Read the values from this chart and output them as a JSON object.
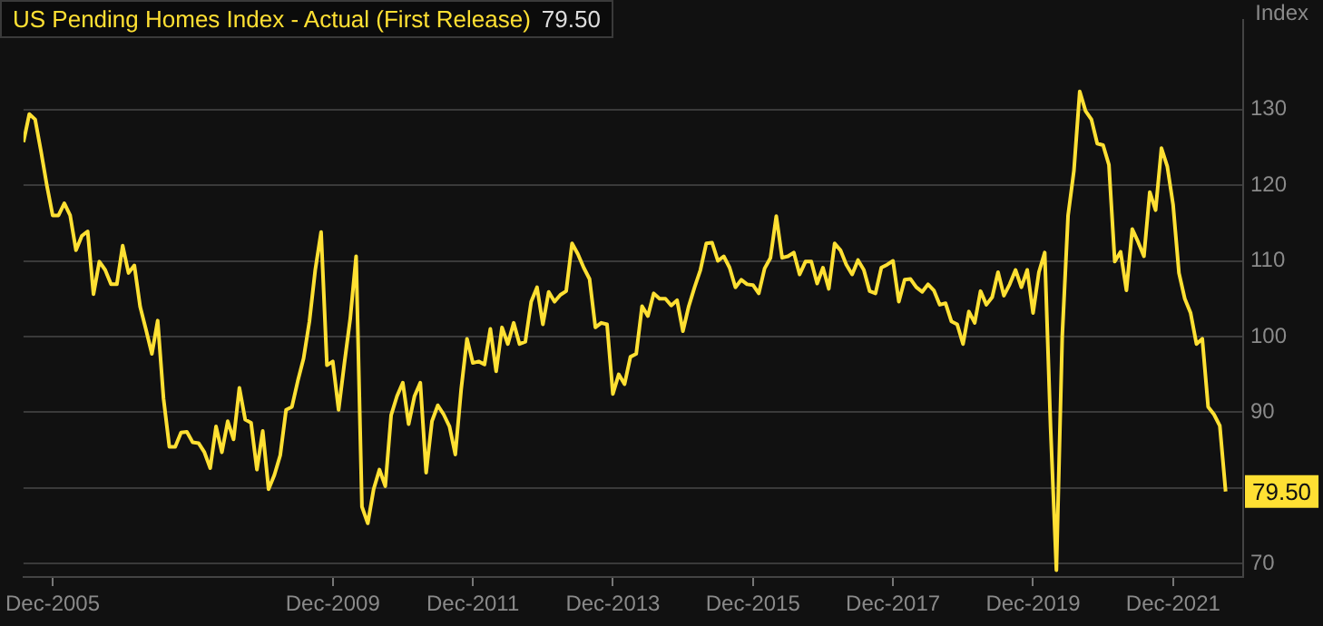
{
  "chart_data": {
    "type": "line",
    "ylabel": "Index",
    "legend": "top left",
    "grid": "y",
    "xlim": [
      "2005-07",
      "2022-12"
    ],
    "ylim": [
      68.2,
      141.8
    ],
    "xticks": [
      {
        "value": "2005-12",
        "label": "Dec-2005"
      },
      {
        "value": "2009-12",
        "label": "Dec-2009"
      },
      {
        "value": "2011-12",
        "label": "Dec-2011"
      },
      {
        "value": "2013-12",
        "label": "Dec-2013"
      },
      {
        "value": "2015-12",
        "label": "Dec-2015"
      },
      {
        "value": "2017-12",
        "label": "Dec-2017"
      },
      {
        "value": "2019-12",
        "label": "Dec-2019"
      },
      {
        "value": "2021-12",
        "label": "Dec-2021"
      }
    ],
    "yticks": [
      70,
      {
        "value": 80,
        "label": null
      },
      90,
      100,
      110,
      120,
      130
    ],
    "series": [
      {
        "name": "US Pending Homes Index - Actual (First Release)",
        "color": "#ffe033",
        "x": [
          "2005-07",
          "2005-08",
          "2005-09",
          "2005-10",
          "2005-11",
          "2005-12",
          "2006-01",
          "2006-02",
          "2006-03",
          "2006-04",
          "2006-05",
          "2006-06",
          "2006-07",
          "2006-08",
          "2006-09",
          "2006-10",
          "2006-11",
          "2006-12",
          "2007-01",
          "2007-02",
          "2007-03",
          "2007-04",
          "2007-05",
          "2007-06",
          "2007-07",
          "2007-08",
          "2007-09",
          "2007-10",
          "2007-11",
          "2007-12",
          "2008-01",
          "2008-02",
          "2008-03",
          "2008-04",
          "2008-05",
          "2008-06",
          "2008-07",
          "2008-08",
          "2008-09",
          "2008-10",
          "2008-11",
          "2008-12",
          "2009-01",
          "2009-02",
          "2009-03",
          "2009-04",
          "2009-05",
          "2009-06",
          "2009-07",
          "2009-08",
          "2009-09",
          "2009-10",
          "2009-11",
          "2009-12",
          "2010-01",
          "2010-02",
          "2010-03",
          "2010-04",
          "2010-05",
          "2010-06",
          "2010-07",
          "2010-08",
          "2010-09",
          "2010-10",
          "2010-11",
          "2010-12",
          "2011-01",
          "2011-02",
          "2011-03",
          "2011-04",
          "2011-05",
          "2011-06",
          "2011-07",
          "2011-08",
          "2011-09",
          "2011-10",
          "2011-11",
          "2011-12",
          "2012-01",
          "2012-02",
          "2012-03",
          "2012-04",
          "2012-05",
          "2012-06",
          "2012-07",
          "2012-08",
          "2012-09",
          "2012-10",
          "2012-11",
          "2012-12",
          "2013-01",
          "2013-02",
          "2013-03",
          "2013-04",
          "2013-05",
          "2013-06",
          "2013-07",
          "2013-08",
          "2013-09",
          "2013-10",
          "2013-11",
          "2013-12",
          "2014-01",
          "2014-02",
          "2014-03",
          "2014-04",
          "2014-05",
          "2014-06",
          "2014-07",
          "2014-08",
          "2014-09",
          "2014-10",
          "2014-11",
          "2014-12",
          "2015-01",
          "2015-02",
          "2015-03",
          "2015-04",
          "2015-05",
          "2015-06",
          "2015-07",
          "2015-08",
          "2015-09",
          "2015-10",
          "2015-11",
          "2015-12",
          "2016-01",
          "2016-02",
          "2016-03",
          "2016-04",
          "2016-05",
          "2016-06",
          "2016-07",
          "2016-08",
          "2016-09",
          "2016-10",
          "2016-11",
          "2016-12",
          "2017-01",
          "2017-02",
          "2017-03",
          "2017-04",
          "2017-05",
          "2017-06",
          "2017-07",
          "2017-08",
          "2017-09",
          "2017-10",
          "2017-11",
          "2017-12",
          "2018-01",
          "2018-02",
          "2018-03",
          "2018-04",
          "2018-05",
          "2018-06",
          "2018-07",
          "2018-08",
          "2018-09",
          "2018-10",
          "2018-11",
          "2018-12",
          "2019-01",
          "2019-02",
          "2019-03",
          "2019-04",
          "2019-05",
          "2019-06",
          "2019-07",
          "2019-08",
          "2019-09",
          "2019-10",
          "2019-11",
          "2019-12",
          "2020-01",
          "2020-02",
          "2020-03",
          "2020-04",
          "2020-05",
          "2020-06",
          "2020-07",
          "2020-08",
          "2020-09",
          "2020-10",
          "2020-11",
          "2020-12",
          "2021-01",
          "2021-02",
          "2021-03",
          "2021-04",
          "2021-05",
          "2021-06",
          "2021-07",
          "2021-08",
          "2021-09",
          "2021-10",
          "2021-11",
          "2021-12",
          "2022-01",
          "2022-02",
          "2022-03",
          "2022-04",
          "2022-05",
          "2022-06",
          "2022-07",
          "2022-08",
          "2022-09"
        ],
        "values": [
          125.7,
          129.4,
          128.7,
          124.5,
          120.0,
          116.0,
          116.0,
          117.6,
          116.0,
          111.4,
          113.3,
          113.9,
          105.6,
          109.9,
          108.8,
          106.9,
          106.9,
          112.0,
          108.4,
          109.4,
          103.9,
          100.9,
          97.7,
          102.1,
          91.8,
          85.4,
          85.4,
          87.3,
          87.4,
          86.0,
          85.9,
          84.7,
          82.6,
          88.1,
          84.7,
          88.8,
          86.4,
          93.2,
          89.0,
          88.6,
          82.4,
          87.5,
          79.8,
          81.7,
          84.3,
          90.3,
          90.7,
          94.1,
          97.1,
          102.0,
          108.8,
          113.8,
          96.2,
          96.7,
          90.3,
          96.5,
          102.4,
          110.6,
          77.5,
          75.3,
          79.8,
          82.4,
          80.2,
          89.6,
          92.1,
          93.9,
          88.4,
          92.1,
          93.9,
          82.0,
          88.8,
          90.9,
          89.7,
          88.1,
          84.4,
          93.0,
          99.7,
          96.5,
          96.7,
          96.3,
          101.0,
          95.4,
          101.2,
          99.0,
          101.8,
          99.0,
          99.3,
          104.6,
          106.5,
          101.6,
          105.9,
          104.6,
          105.5,
          106.0,
          112.3,
          110.9,
          109.1,
          107.6,
          101.2,
          101.8,
          101.6,
          92.4,
          95.0,
          93.7,
          97.3,
          97.7,
          104.0,
          102.7,
          105.7,
          105.0,
          105.0,
          104.1,
          104.8,
          100.7,
          104.0,
          106.5,
          108.8,
          112.3,
          112.4,
          110.0,
          110.6,
          109.1,
          106.5,
          107.5,
          106.9,
          106.8,
          105.7,
          109.0,
          110.4,
          115.9,
          110.4,
          110.6,
          111.1,
          108.2,
          109.9,
          109.9,
          107.0,
          109.1,
          106.3,
          112.3,
          111.4,
          109.5,
          108.2,
          110.1,
          108.8,
          106.0,
          105.7,
          109.1,
          109.5,
          110.0,
          104.6,
          107.5,
          107.6,
          106.5,
          105.9,
          106.9,
          106.1,
          104.2,
          104.4,
          102.0,
          101.6,
          99.0,
          103.3,
          101.8,
          106.0,
          104.2,
          105.2,
          108.5,
          105.4,
          106.9,
          108.8,
          106.5,
          108.8,
          103.1,
          108.5,
          111.1,
          88.0,
          69.1,
          100.0,
          116.0,
          121.9,
          132.4,
          129.8,
          128.7,
          125.5,
          125.3,
          122.7,
          109.9,
          111.2,
          106.1,
          114.2,
          112.5,
          110.6,
          119.1,
          116.7,
          124.9,
          122.5,
          117.4,
          108.4,
          105.0,
          103.1,
          99.0,
          99.7,
          90.7,
          89.7,
          88.2,
          79.5
        ]
      }
    ],
    "annotations": [
      {
        "text": "79.50",
        "x": "2022-09",
        "y": 79.5
      }
    ]
  }
}
